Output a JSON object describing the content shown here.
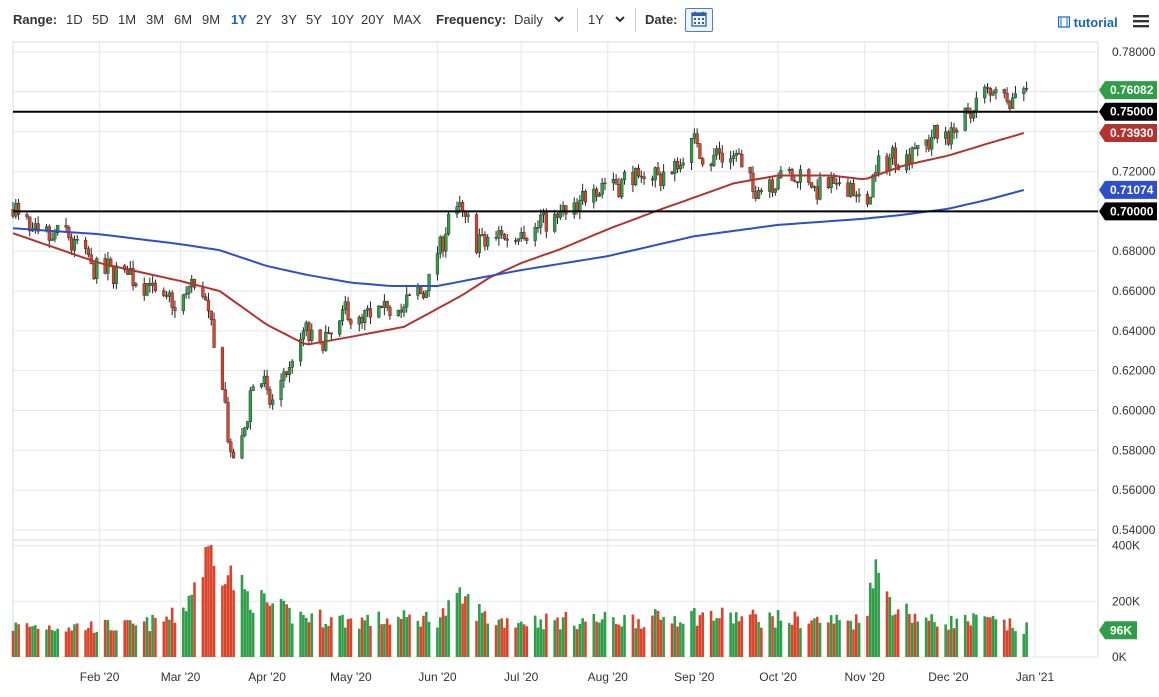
{
  "toolbar": {
    "range_label": "Range:",
    "ranges": [
      "1D",
      "5D",
      "1M",
      "3M",
      "6M",
      "9M",
      "1Y",
      "2Y",
      "3Y",
      "5Y",
      "10Y",
      "20Y",
      "MAX"
    ],
    "active_range": "1Y",
    "frequency_label": "Frequency:",
    "frequency_value": "Daily",
    "period_value": "1Y",
    "date_label": "Date:",
    "tutorial_label": "tutorial",
    "accent_color": "#1a63c6"
  },
  "chart_data": {
    "type": "candlestick",
    "x_tick_labels": [
      "Feb '20",
      "Mar '20",
      "Apr '20",
      "May '20",
      "Jun '20",
      "Jul '20",
      "Aug '20",
      "Sep '20",
      "Oct '20",
      "Nov '20",
      "Dec '20",
      "Jan '21"
    ],
    "y_tick_labels": [
      "0.54000",
      "0.56000",
      "0.58000",
      "0.60000",
      "0.62000",
      "0.64000",
      "0.66000",
      "0.68000",
      "0.70000",
      "0.72000",
      "0.74000",
      "0.76000",
      "0.78000"
    ],
    "ylim": [
      0.535,
      0.785
    ],
    "grid": true,
    "up_color": "#2e9e48",
    "down_color": "#d9442b",
    "price_anchors": [
      [
        "2020-01-01",
        0.701
      ],
      [
        "2020-01-10",
        0.686
      ],
      [
        "2020-01-20",
        0.688
      ],
      [
        "2020-01-31",
        0.67
      ],
      [
        "2020-02-10",
        0.67
      ],
      [
        "2020-02-20",
        0.662
      ],
      [
        "2020-02-28",
        0.652
      ],
      [
        "2020-03-05",
        0.663
      ],
      [
        "2020-03-10",
        0.657
      ],
      [
        "2020-03-13",
        0.63
      ],
      [
        "2020-03-17",
        0.605
      ],
      [
        "2020-03-19",
        0.573
      ],
      [
        "2020-03-23",
        0.582
      ],
      [
        "2020-03-26",
        0.609
      ],
      [
        "2020-03-31",
        0.613
      ],
      [
        "2020-04-03",
        0.602
      ],
      [
        "2020-04-07",
        0.617
      ],
      [
        "2020-04-15",
        0.64
      ],
      [
        "2020-04-21",
        0.633
      ],
      [
        "2020-04-29",
        0.65
      ],
      [
        "2020-05-05",
        0.645
      ],
      [
        "2020-05-12",
        0.651
      ],
      [
        "2020-05-20",
        0.652
      ],
      [
        "2020-05-29",
        0.663
      ],
      [
        "2020-06-05",
        0.696
      ],
      [
        "2020-06-10",
        0.7
      ],
      [
        "2020-06-15",
        0.684
      ],
      [
        "2020-06-20",
        0.687
      ],
      [
        "2020-06-30",
        0.689
      ],
      [
        "2020-07-10",
        0.696
      ],
      [
        "2020-07-20",
        0.7
      ],
      [
        "2020-07-27",
        0.712
      ],
      [
        "2020-08-05",
        0.714
      ],
      [
        "2020-08-15",
        0.717
      ],
      [
        "2020-08-25",
        0.72
      ],
      [
        "2020-08-31",
        0.737
      ],
      [
        "2020-09-05",
        0.727
      ],
      [
        "2020-09-15",
        0.73
      ],
      [
        "2020-09-23",
        0.71
      ],
      [
        "2020-09-30",
        0.716
      ],
      [
        "2020-10-10",
        0.717
      ],
      [
        "2020-10-15",
        0.71
      ],
      [
        "2020-10-25",
        0.714
      ],
      [
        "2020-11-02",
        0.703
      ],
      [
        "2020-11-06",
        0.726
      ],
      [
        "2020-11-15",
        0.728
      ],
      [
        "2020-11-25",
        0.737
      ],
      [
        "2020-12-05",
        0.741
      ],
      [
        "2020-12-10",
        0.752
      ],
      [
        "2020-12-17",
        0.762
      ],
      [
        "2020-12-21",
        0.756
      ],
      [
        "2020-12-28",
        0.761
      ]
    ],
    "sma_short_anchors": [
      [
        "2020-01-01",
        0.689
      ],
      [
        "2020-02-01",
        0.674
      ],
      [
        "2020-03-01",
        0.665
      ],
      [
        "2020-03-15",
        0.66
      ],
      [
        "2020-04-01",
        0.643
      ],
      [
        "2020-04-15",
        0.633
      ],
      [
        "2020-05-01",
        0.637
      ],
      [
        "2020-05-20",
        0.642
      ],
      [
        "2020-06-10",
        0.658
      ],
      [
        "2020-06-20",
        0.667
      ],
      [
        "2020-07-01",
        0.674
      ],
      [
        "2020-07-15",
        0.681
      ],
      [
        "2020-08-01",
        0.691
      ],
      [
        "2020-08-20",
        0.701
      ],
      [
        "2020-09-01",
        0.707
      ],
      [
        "2020-09-15",
        0.714
      ],
      [
        "2020-10-01",
        0.718
      ],
      [
        "2020-10-20",
        0.718
      ],
      [
        "2020-11-01",
        0.716
      ],
      [
        "2020-11-15",
        0.723
      ],
      [
        "2020-12-01",
        0.728
      ],
      [
        "2020-12-15",
        0.734
      ],
      [
        "2020-12-28",
        0.7393
      ]
    ],
    "sma_long_anchors": [
      [
        "2020-01-01",
        0.6915
      ],
      [
        "2020-02-01",
        0.6885
      ],
      [
        "2020-03-01",
        0.6835
      ],
      [
        "2020-03-15",
        0.6805
      ],
      [
        "2020-04-01",
        0.6725
      ],
      [
        "2020-04-15",
        0.6682
      ],
      [
        "2020-05-01",
        0.6642
      ],
      [
        "2020-05-15",
        0.6625
      ],
      [
        "2020-06-01",
        0.6625
      ],
      [
        "2020-06-15",
        0.6663
      ],
      [
        "2020-07-01",
        0.6705
      ],
      [
        "2020-08-01",
        0.6775
      ],
      [
        "2020-09-01",
        0.6875
      ],
      [
        "2020-10-01",
        0.6932
      ],
      [
        "2020-10-15",
        0.6946
      ],
      [
        "2020-11-01",
        0.6963
      ],
      [
        "2020-11-15",
        0.6983
      ],
      [
        "2020-12-01",
        0.7013
      ],
      [
        "2020-12-15",
        0.7058
      ],
      [
        "2020-12-28",
        0.7107
      ]
    ],
    "horizontal_lines": [
      0.75,
      0.7
    ],
    "price_tags": [
      {
        "label": "0.76082",
        "value": 0.76082,
        "color": "#2e9e48"
      },
      {
        "label": "0.75000",
        "value": 0.75,
        "color": "#000000"
      },
      {
        "label": "0.73930",
        "value": 0.7393,
        "color": "#b3342f"
      },
      {
        "label": "0.71074",
        "value": 0.71074,
        "color": "#2d4fc9"
      },
      {
        "label": "0.70000",
        "value": 0.7,
        "color": "#000000"
      }
    ],
    "sma_short_color": "#b3342f",
    "sma_long_color": "#2d4fc9",
    "volume": {
      "y_tick_labels": [
        "0K",
        "200K",
        "400K"
      ],
      "ylim": [
        0,
        420
      ],
      "last_label": "96K",
      "last_value": 96,
      "anchors": [
        [
          "2020-01-01",
          110
        ],
        [
          "2020-02-15",
          110
        ],
        [
          "2020-03-01",
          150
        ],
        [
          "2020-03-09",
          330
        ],
        [
          "2020-03-13",
          400
        ],
        [
          "2020-03-18",
          300
        ],
        [
          "2020-03-25",
          220
        ],
        [
          "2020-04-10",
          150
        ],
        [
          "2020-05-01",
          130
        ],
        [
          "2020-06-01",
          140
        ],
        [
          "2020-06-10",
          210
        ],
        [
          "2020-06-20",
          130
        ],
        [
          "2020-07-15",
          130
        ],
        [
          "2020-08-15",
          135
        ],
        [
          "2020-09-01",
          150
        ],
        [
          "2020-10-15",
          130
        ],
        [
          "2020-11-01",
          130
        ],
        [
          "2020-11-04",
          320
        ],
        [
          "2020-11-12",
          180
        ],
        [
          "2020-11-25",
          125
        ],
        [
          "2020-12-15",
          130
        ],
        [
          "2020-12-28",
          100
        ]
      ]
    }
  }
}
